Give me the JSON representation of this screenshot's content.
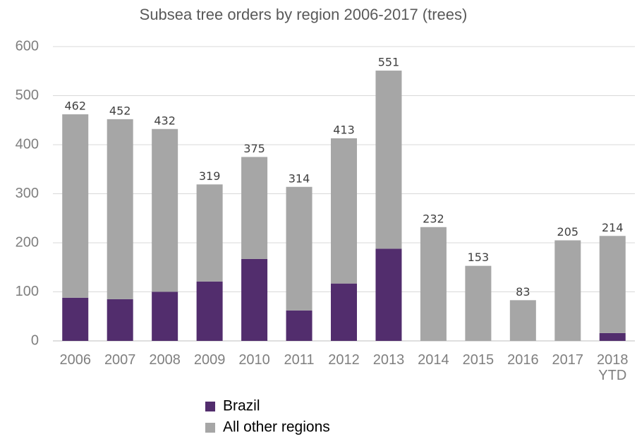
{
  "chart_data": {
    "type": "stacked_bar",
    "title": "Subsea tree orders by region 2006-2017 (trees)",
    "categories": [
      "2006",
      "2007",
      "2008",
      "2009",
      "2010",
      "2011",
      "2012",
      "2013",
      "2014",
      "2015",
      "2016",
      "2017",
      "2018 YTD"
    ],
    "series": [
      {
        "name": "Brazil",
        "color": "#522d6d",
        "values": [
          88,
          85,
          100,
          121,
          167,
          62,
          117,
          188,
          0,
          0,
          0,
          0,
          16
        ]
      },
      {
        "name": "All other regions",
        "color": "#a6a6a6",
        "values": [
          374,
          367,
          332,
          198,
          208,
          252,
          296,
          363,
          232,
          153,
          83,
          205,
          198
        ]
      }
    ],
    "totals": [
      462,
      452,
      432,
      319,
      375,
      314,
      413,
      551,
      232,
      153,
      83,
      205,
      214
    ],
    "ylim": [
      0,
      600
    ],
    "yticks": [
      0,
      100,
      200,
      300,
      400,
      500,
      600
    ],
    "grid": true,
    "legend": "bottom"
  }
}
